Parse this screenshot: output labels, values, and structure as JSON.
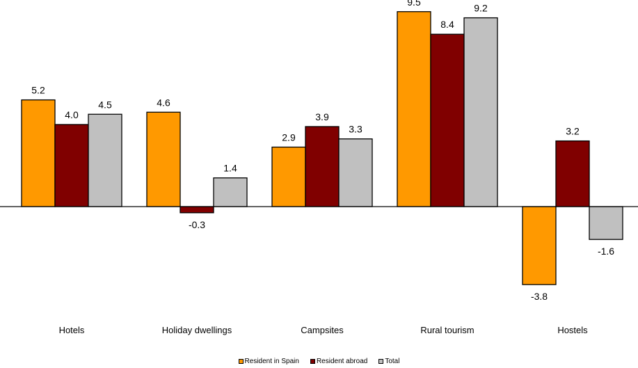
{
  "chart_data": {
    "type": "bar",
    "categories": [
      "Hotels",
      "Holiday dwellings",
      "Campsites",
      "Rural tourism",
      "Hostels"
    ],
    "series": [
      {
        "name": "Resident in Spain",
        "color": "#FF9900",
        "values": [
          5.2,
          4.6,
          2.9,
          9.5,
          -3.8
        ],
        "labels": [
          "5.2",
          "4.6",
          "2.9",
          "9.5",
          "-3.8"
        ]
      },
      {
        "name": "Resident abroad",
        "color": "#800000",
        "values": [
          4.0,
          -0.3,
          3.9,
          8.4,
          3.2
        ],
        "labels": [
          "4.0",
          "-0.3",
          "3.9",
          "8.4",
          "3.2"
        ]
      },
      {
        "name": "Total",
        "color": "#C0C0C0",
        "values": [
          4.5,
          1.4,
          3.3,
          9.2,
          -1.6
        ],
        "labels": [
          "4.5",
          "1.4",
          "3.3",
          "9.2",
          "-1.6"
        ]
      }
    ],
    "title": "",
    "xlabel": "",
    "ylabel": "",
    "ylim": [
      -4.5,
      10.5
    ],
    "grid": false,
    "legend_position": "bottom"
  }
}
